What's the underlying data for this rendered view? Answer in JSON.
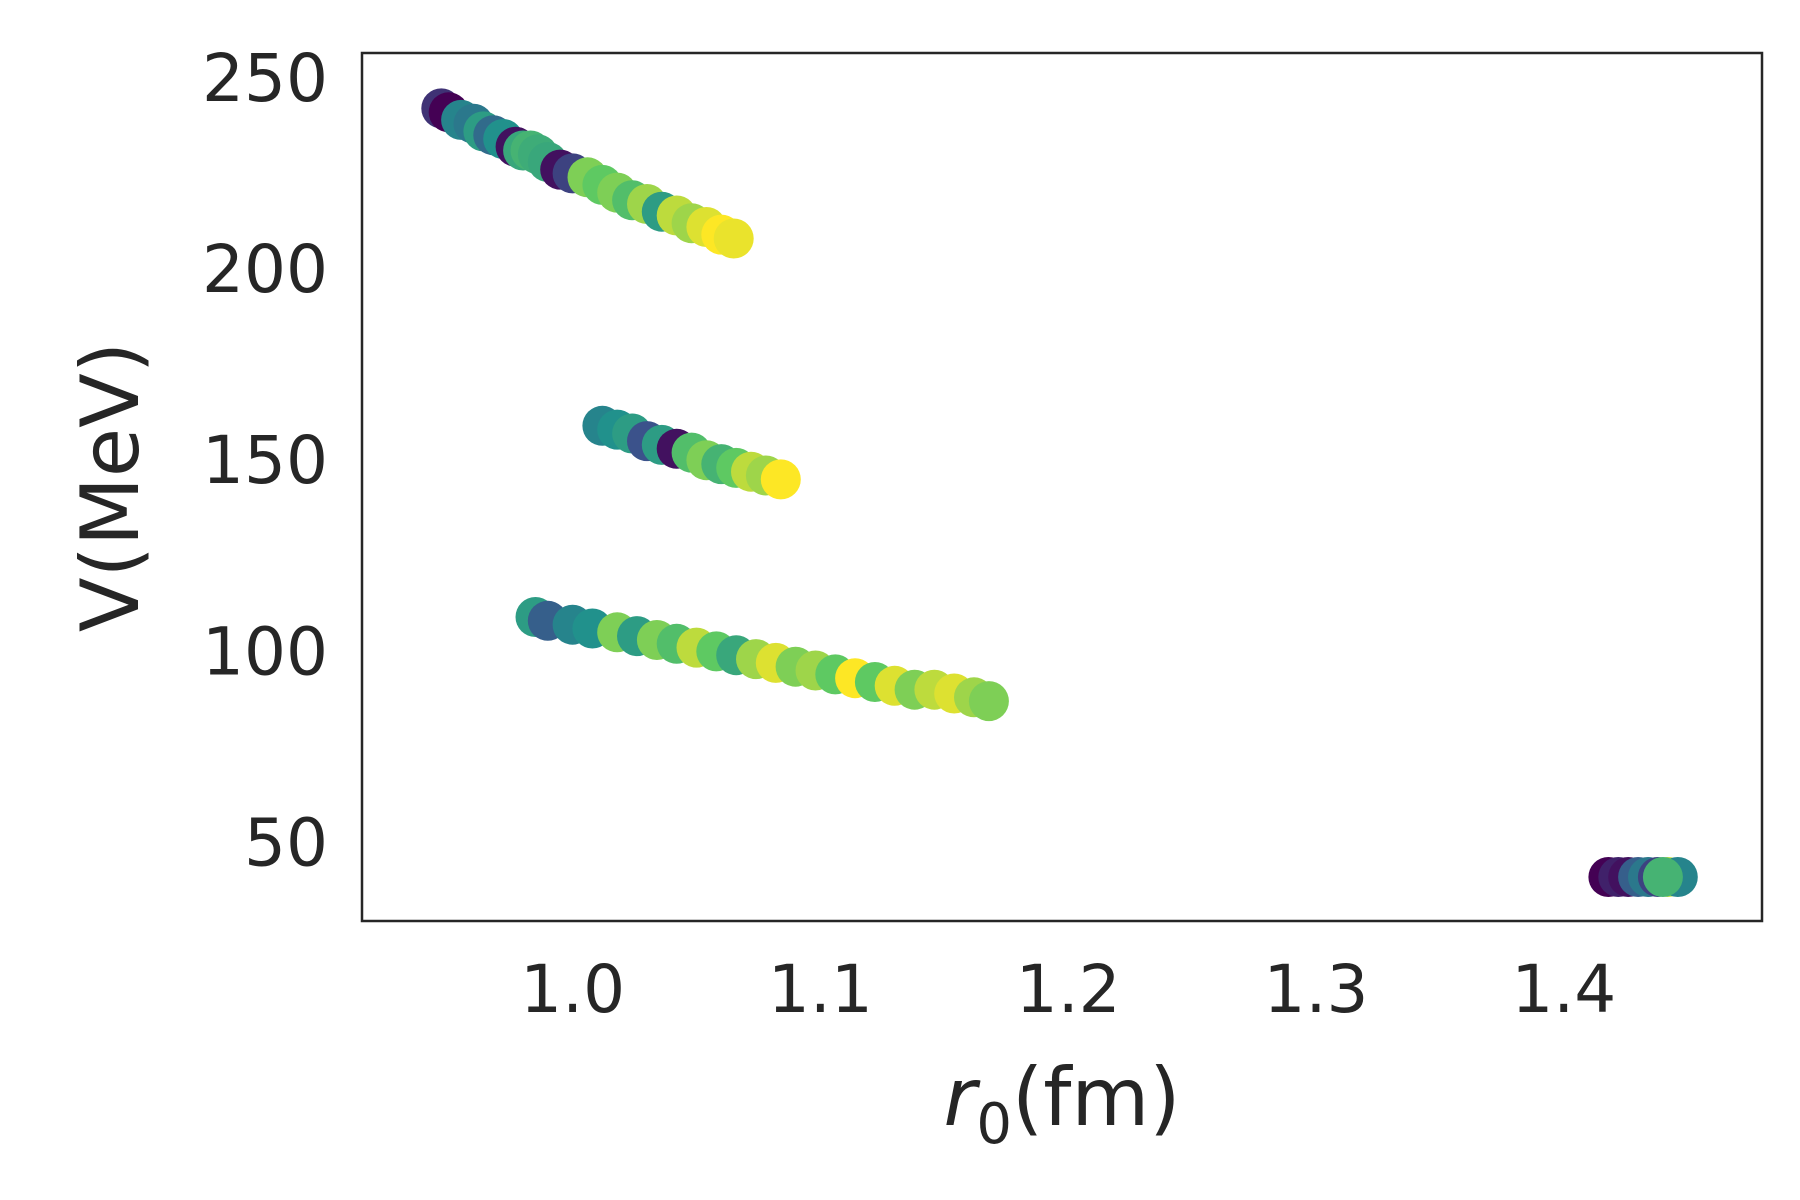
{
  "chart_data": {
    "type": "scatter",
    "title": "",
    "xlabel": "r0(fm)",
    "xlabel_main": "r",
    "xlabel_sub": "0",
    "xlabel_unit": "(fm)",
    "ylabel": "V(MeV)",
    "xlim": [
      0.915,
      1.48
    ],
    "ylim": [
      29.5,
      256.5
    ],
    "xticks": [
      1.0,
      1.1,
      1.2,
      1.3,
      1.4
    ],
    "xtick_labels": [
      "1.0",
      "1.1",
      "1.2",
      "1.3",
      "1.4"
    ],
    "yticks": [
      50,
      100,
      150,
      200,
      250
    ],
    "ytick_labels": [
      "50",
      "100",
      "150",
      "200",
      "250"
    ],
    "grid": false,
    "legend": "none",
    "colormap": "viridis",
    "series": [
      {
        "points": [
          [
            0.947,
            242,
            0.15
          ],
          [
            0.95,
            241,
            0.0
          ],
          [
            0.955,
            239,
            0.45
          ],
          [
            0.96,
            238,
            0.4
          ],
          [
            0.964,
            236,
            0.55
          ],
          [
            0.968,
            235,
            0.35
          ],
          [
            0.972,
            234,
            0.5
          ],
          [
            0.977,
            232,
            0.05
          ],
          [
            0.98,
            231,
            0.6
          ],
          [
            0.983,
            231,
            0.65
          ],
          [
            0.986,
            230,
            0.62
          ],
          [
            0.99,
            228,
            0.6
          ],
          [
            0.995,
            226,
            0.05
          ],
          [
            1.0,
            225,
            0.2
          ],
          [
            1.006,
            224,
            0.8
          ],
          [
            1.012,
            222,
            0.75
          ],
          [
            1.018,
            220,
            0.8
          ],
          [
            1.024,
            218,
            0.7
          ],
          [
            1.03,
            217,
            0.85
          ],
          [
            1.036,
            215,
            0.55
          ],
          [
            1.042,
            214,
            0.9
          ],
          [
            1.048,
            212,
            0.85
          ],
          [
            1.054,
            211,
            0.95
          ],
          [
            1.06,
            209,
            1.0
          ],
          [
            1.065,
            208,
            0.97
          ]
        ]
      },
      {
        "points": [
          [
            1.012,
            159,
            0.45
          ],
          [
            1.018,
            158,
            0.5
          ],
          [
            1.024,
            157,
            0.55
          ],
          [
            1.03,
            155,
            0.25
          ],
          [
            1.036,
            154,
            0.55
          ],
          [
            1.042,
            153,
            0.05
          ],
          [
            1.048,
            152,
            0.7
          ],
          [
            1.054,
            150,
            0.8
          ],
          [
            1.06,
            149,
            0.65
          ],
          [
            1.066,
            148,
            0.75
          ],
          [
            1.072,
            147,
            0.9
          ],
          [
            1.078,
            146,
            0.85
          ],
          [
            1.084,
            145,
            1.0
          ]
        ]
      },
      {
        "points": [
          [
            0.985,
            109,
            0.55
          ],
          [
            0.99,
            108,
            0.3
          ],
          [
            1.0,
            107,
            0.45
          ],
          [
            1.008,
            106,
            0.5
          ],
          [
            1.018,
            105,
            0.8
          ],
          [
            1.026,
            104,
            0.55
          ],
          [
            1.034,
            103,
            0.8
          ],
          [
            1.042,
            102,
            0.7
          ],
          [
            1.05,
            101,
            0.9
          ],
          [
            1.058,
            100,
            0.75
          ],
          [
            1.066,
            99,
            0.6
          ],
          [
            1.074,
            98,
            0.85
          ],
          [
            1.082,
            97,
            0.95
          ],
          [
            1.09,
            96,
            0.8
          ],
          [
            1.098,
            95,
            0.85
          ],
          [
            1.106,
            94,
            0.75
          ],
          [
            1.114,
            93,
            1.0
          ],
          [
            1.122,
            92,
            0.75
          ],
          [
            1.13,
            91,
            0.95
          ],
          [
            1.138,
            90,
            0.8
          ],
          [
            1.146,
            90,
            0.9
          ],
          [
            1.154,
            89,
            0.95
          ],
          [
            1.162,
            88,
            0.85
          ],
          [
            1.168,
            87,
            0.8
          ]
        ]
      },
      {
        "points": [
          [
            1.418,
            41,
            0.0
          ],
          [
            1.422,
            41,
            0.1
          ],
          [
            1.426,
            41,
            0.05
          ],
          [
            1.43,
            41,
            0.3
          ],
          [
            1.434,
            41,
            0.4
          ],
          [
            1.438,
            41,
            0.2
          ],
          [
            1.442,
            41,
            0.9
          ],
          [
            1.446,
            41,
            0.45
          ],
          [
            1.44,
            41,
            0.65
          ]
        ]
      }
    ]
  }
}
